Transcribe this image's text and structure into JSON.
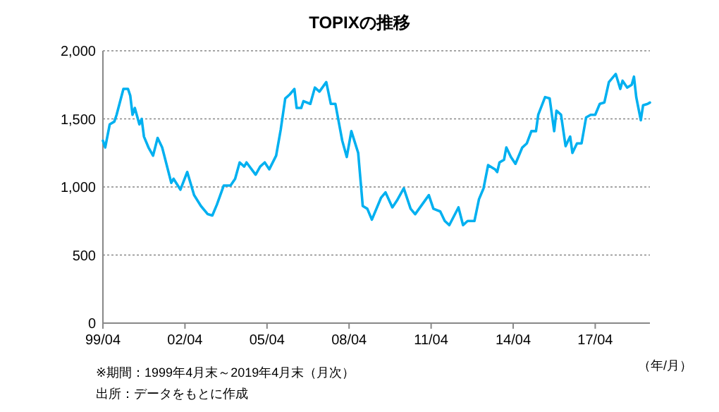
{
  "chart_data": {
    "type": "line",
    "title": "TOPIXの推移",
    "xlabel": "（年/月）",
    "annotations": [
      "※期間：1999年4月末～2019年4月末（月次）",
      "出所：データをもとに作成"
    ],
    "x": [
      "1999-04",
      "1999-05",
      "1999-07",
      "1999-09",
      "1999-10",
      "2000-01",
      "2000-03",
      "2000-04",
      "2000-05",
      "2000-06",
      "2000-08",
      "2000-09",
      "2000-10",
      "2000-12",
      "2001-02",
      "2001-04",
      "2001-06",
      "2001-10",
      "2001-11",
      "2002-02",
      "2002-05",
      "2002-08",
      "2002-11",
      "2003-02",
      "2003-04",
      "2003-06",
      "2003-09",
      "2003-12",
      "2004-02",
      "2004-04",
      "2004-06",
      "2004-07",
      "2004-11",
      "2005-01",
      "2005-03",
      "2005-05",
      "2005-08",
      "2005-10",
      "2005-12",
      "2006-02",
      "2006-04",
      "2006-05",
      "2006-07",
      "2006-08",
      "2006-11",
      "2007-01",
      "2007-03",
      "2007-06",
      "2007-08",
      "2007-10",
      "2008-01",
      "2008-03",
      "2008-05",
      "2008-08",
      "2008-10",
      "2008-12",
      "2009-02",
      "2009-06",
      "2009-08",
      "2009-11",
      "2010-01",
      "2010-04",
      "2010-07",
      "2010-09",
      "2010-12",
      "2011-03",
      "2011-05",
      "2011-08",
      "2011-10",
      "2011-12",
      "2012-04",
      "2012-06",
      "2012-08",
      "2012-11",
      "2013-01",
      "2013-03",
      "2013-05",
      "2013-08",
      "2013-09",
      "2013-10",
      "2013-12",
      "2014-01",
      "2014-03",
      "2014-05",
      "2014-08",
      "2014-10",
      "2014-12",
      "2015-02",
      "2015-03",
      "2015-06",
      "2015-08",
      "2015-10",
      "2015-11",
      "2016-01",
      "2016-03",
      "2016-05",
      "2016-06",
      "2016-08",
      "2016-10",
      "2016-12",
      "2017-02",
      "2017-04",
      "2017-06",
      "2017-08",
      "2017-10",
      "2018-01",
      "2018-03",
      "2018-04",
      "2018-06",
      "2018-08",
      "2018-09",
      "2018-10",
      "2018-12",
      "2019-01",
      "2019-03",
      "2019-04"
    ],
    "series": [
      {
        "color": "#00b0f0",
        "values": [
          1340,
          1290,
          1460,
          1480,
          1530,
          1720,
          1720,
          1670,
          1530,
          1580,
          1460,
          1500,
          1370,
          1290,
          1230,
          1360,
          1290,
          1030,
          1060,
          980,
          1110,
          940,
          860,
          800,
          790,
          870,
          1010,
          1010,
          1060,
          1180,
          1150,
          1180,
          1090,
          1150,
          1180,
          1130,
          1230,
          1420,
          1650,
          1680,
          1720,
          1580,
          1580,
          1630,
          1610,
          1730,
          1700,
          1770,
          1610,
          1610,
          1340,
          1220,
          1410,
          1250,
          860,
          840,
          760,
          920,
          960,
          850,
          900,
          990,
          840,
          800,
          870,
          940,
          840,
          820,
          750,
          720,
          850,
          720,
          750,
          750,
          910,
          990,
          1160,
          1130,
          1110,
          1180,
          1200,
          1290,
          1220,
          1170,
          1290,
          1320,
          1410,
          1410,
          1530,
          1660,
          1650,
          1410,
          1560,
          1530,
          1300,
          1370,
          1250,
          1320,
          1320,
          1510,
          1530,
          1530,
          1610,
          1620,
          1770,
          1830,
          1720,
          1780,
          1730,
          1750,
          1810,
          1660,
          1490,
          1600,
          1610,
          1620
        ]
      }
    ],
    "xlim": [
      "1999-04",
      "2019-04"
    ],
    "xticks": [
      {
        "value": "1999-04",
        "label": "99/04"
      },
      {
        "value": "2002-04",
        "label": "02/04"
      },
      {
        "value": "2005-04",
        "label": "05/04"
      },
      {
        "value": "2008-04",
        "label": "08/04"
      },
      {
        "value": "2011-04",
        "label": "11/04"
      },
      {
        "value": "2014-04",
        "label": "14/04"
      },
      {
        "value": "2017-04",
        "label": "17/04"
      }
    ],
    "ylim": [
      0,
      2000
    ],
    "yticks": [
      {
        "value": 0,
        "label": "0"
      },
      {
        "value": 500,
        "label": "500"
      },
      {
        "value": 1000,
        "label": "1,000"
      },
      {
        "value": 1500,
        "label": "1,500"
      },
      {
        "value": 2000,
        "label": "2,000"
      }
    ],
    "grid": "y",
    "marker": "none",
    "line_style": "solid"
  }
}
